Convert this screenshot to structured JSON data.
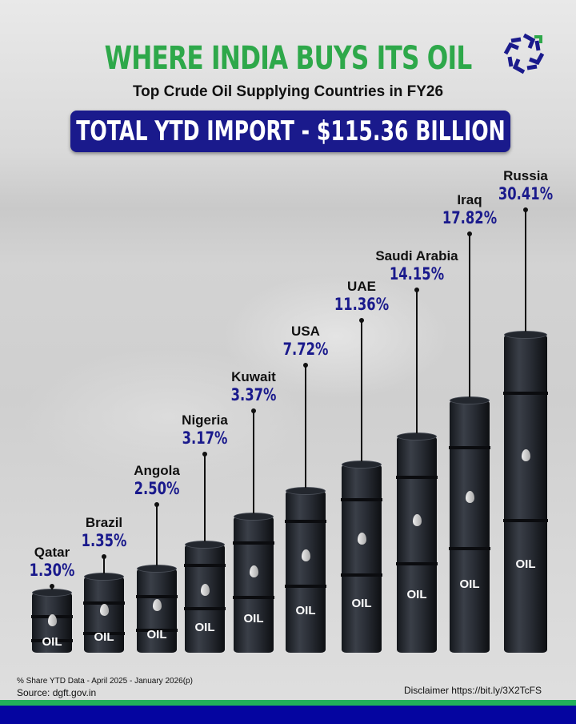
{
  "header": {
    "title": "WHERE INDIA BUYS ITS OIL",
    "subtitle": "Top Crude Oil Supplying Countries in FY26",
    "banner": "TOTAL YTD IMPORT - $115.36 BILLION"
  },
  "colors": {
    "title": "#2ea84a",
    "banner": "#1a1a8c",
    "percent": "#1a1a8c",
    "barrel": "#2a2e36",
    "footer_green": "#22b05a",
    "footer_blue": "#0505a0"
  },
  "chart_data": {
    "type": "bar",
    "categories": [
      "Qatar",
      "Brazil",
      "Angola",
      "Nigeria",
      "Kuwait",
      "USA",
      "UAE",
      "Saudi Arabia",
      "Iraq",
      "Russia"
    ],
    "values": [
      1.3,
      1.35,
      2.5,
      3.17,
      3.37,
      7.72,
      11.36,
      14.15,
      17.82,
      30.41
    ],
    "labels": [
      "1.30%",
      "1.35%",
      "2.50%",
      "3.17%",
      "3.37%",
      "7.72%",
      "11.36%",
      "14.15%",
      "17.82%",
      "30.41%"
    ],
    "bar_text": "OIL",
    "unit": "% share"
  },
  "footer": {
    "note": "% Share YTD Data - April 2025 - January 2026(p)",
    "source": "Source: dgft.gov.in",
    "disclaimer": "Disclaimer https://bit.ly/3X2TcFS"
  }
}
